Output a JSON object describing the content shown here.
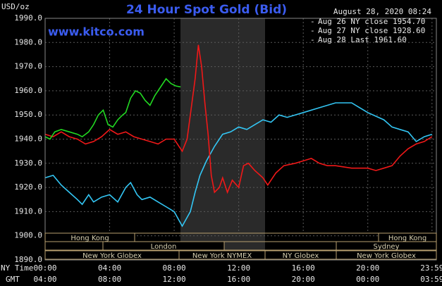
{
  "chart_data": {
    "type": "line",
    "title": "24 Hour Spot Gold (Bid)",
    "subtitle": "www.kitco.com",
    "date": "August 28, 2020 08:24",
    "y_label": "USD/oz",
    "x_label": "NY Time",
    "x2_label": "GMT",
    "xlim": [
      0,
      24.25
    ],
    "ylim": [
      1890,
      1990
    ],
    "xticks": [
      {
        "value": 0,
        "label": "00:00"
      },
      {
        "value": 4,
        "label": "04:00"
      },
      {
        "value": 8,
        "label": "08:00"
      },
      {
        "value": 12,
        "label": "12:00"
      },
      {
        "value": 16,
        "label": "16:00"
      },
      {
        "value": 20,
        "label": "20:00"
      },
      {
        "value": 23.98,
        "label": "23:59"
      }
    ],
    "x2ticks": [
      {
        "value": 0,
        "label": "04:00"
      },
      {
        "value": 4,
        "label": "08:00"
      },
      {
        "value": 8,
        "label": "12:00"
      },
      {
        "value": 12,
        "label": "16:00"
      },
      {
        "value": 16,
        "label": "20:00"
      },
      {
        "value": 20,
        "label": "00:00"
      },
      {
        "value": 23.98,
        "label": "03:59"
      }
    ],
    "yticks": [
      {
        "value": 1890,
        "label": "1890.0"
      },
      {
        "value": 1900,
        "label": "1900.0"
      },
      {
        "value": 1910,
        "label": "1910.0"
      },
      {
        "value": 1920,
        "label": "1920.0"
      },
      {
        "value": 1930,
        "label": "1930.0"
      },
      {
        "value": 1940,
        "label": "1940.0"
      },
      {
        "value": 1950,
        "label": "1950.0"
      },
      {
        "value": 1960,
        "label": "1960.0"
      },
      {
        "value": 1970,
        "label": "1970.0"
      },
      {
        "value": 1980,
        "label": "1980.0"
      },
      {
        "value": 1990,
        "label": "1990.0"
      }
    ],
    "grid": true,
    "legend": "top-right",
    "series": [
      {
        "name": "Aug 26 NY close 1954.70",
        "color": "#33c6f4",
        "x": [
          0,
          0.5,
          1,
          1.5,
          2,
          2.3,
          2.7,
          3,
          3.5,
          4,
          4.5,
          5,
          5.3,
          5.7,
          6,
          6.5,
          7,
          7.5,
          8,
          8.5,
          9,
          9.3,
          9.6,
          10,
          10.5,
          11,
          11.5,
          12,
          12.5,
          13,
          13.5,
          14,
          14.5,
          15,
          16,
          17,
          18,
          19,
          20,
          21,
          21.5,
          22,
          22.5,
          23,
          23.5,
          23.98
        ],
        "values": [
          1924,
          1925,
          1921,
          1918,
          1915,
          1913,
          1917,
          1914,
          1916,
          1917,
          1914,
          1920,
          1922,
          1917,
          1915,
          1916,
          1914,
          1912,
          1910,
          1904,
          1910,
          1918,
          1925,
          1931,
          1937,
          1942,
          1943,
          1945,
          1944,
          1946,
          1948,
          1947,
          1950,
          1949,
          1951,
          1953,
          1955,
          1955,
          1951,
          1948,
          1945,
          1944,
          1943,
          1939,
          1941,
          1942
        ]
      },
      {
        "name": "Aug 27 NY close 1928.60",
        "color": "#f01818",
        "x": [
          0,
          0.5,
          1,
          1.5,
          2,
          2.5,
          3,
          3.5,
          4,
          4.5,
          5,
          5.5,
          6,
          6.5,
          7,
          7.5,
          8,
          8.5,
          8.8,
          9,
          9.3,
          9.5,
          9.7,
          9.9,
          10.1,
          10.3,
          10.5,
          10.8,
          11,
          11.3,
          11.6,
          12,
          12.3,
          12.6,
          13,
          13.5,
          13.8,
          14.3,
          14.8,
          15.5,
          16,
          16.5,
          17,
          17.5,
          18,
          19,
          20,
          20.5,
          21,
          21.5,
          22,
          22.5,
          23,
          23.5,
          23.98
        ],
        "values": [
          1942,
          1941,
          1943,
          1941,
          1940,
          1938,
          1939,
          1941,
          1944,
          1942,
          1943,
          1941,
          1940,
          1939,
          1938,
          1940,
          1940,
          1935,
          1940,
          1950,
          1965,
          1979,
          1970,
          1955,
          1942,
          1925,
          1918,
          1920,
          1924,
          1918,
          1923,
          1920,
          1929,
          1930,
          1927,
          1924,
          1921,
          1926,
          1929,
          1930,
          1931,
          1932,
          1930,
          1929,
          1929,
          1928,
          1928,
          1927,
          1928,
          1929,
          1933,
          1936,
          1938,
          1939,
          1941
        ]
      },
      {
        "name": "Aug 28 Last 1961.60",
        "color": "#22d822",
        "x": [
          0,
          0.3,
          0.6,
          1,
          1.5,
          2,
          2.3,
          2.7,
          3,
          3.3,
          3.6,
          3.9,
          4.2,
          4.5,
          4.8,
          5,
          5.3,
          5.6,
          5.9,
          6.2,
          6.5,
          6.8,
          7.2,
          7.5,
          7.8,
          8.1,
          8.4
        ],
        "values": [
          1941,
          1940,
          1943,
          1944,
          1943,
          1942,
          1941,
          1943,
          1946,
          1950,
          1952,
          1946,
          1945,
          1948,
          1950,
          1951,
          1957,
          1960,
          1959,
          1956,
          1954,
          1958,
          1962,
          1965,
          1963,
          1962,
          1961.6
        ]
      }
    ],
    "sessions": [
      "Hong Kong",
      "London",
      "New York Globex",
      "New York NYMEX",
      "NY Globex",
      "Hong Kong",
      "Sydney",
      "New York Globex"
    ]
  }
}
